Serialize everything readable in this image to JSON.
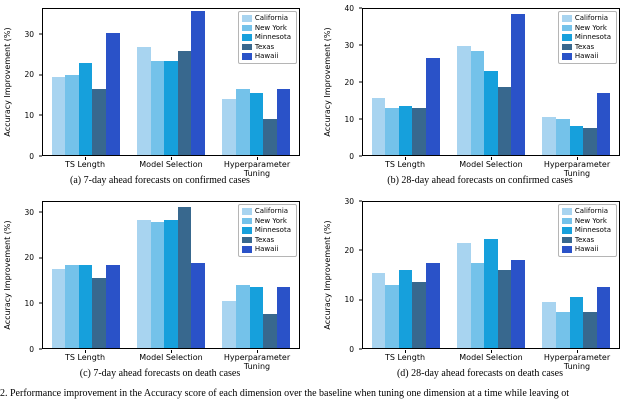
{
  "figure": {
    "bottom_caption": "2.   Performance improvement in the Accuracy score of each dimension over the baseline when tuning one dimension at a time while leaving ot"
  },
  "palette": [
    "#a8d4f0",
    "#74c2ea",
    "#16a0dc",
    "#38688e",
    "#2a52c8"
  ],
  "chart_data": [
    {
      "id": "a",
      "type": "bar",
      "caption": "(a) 7-day ahead forecasts on confirmed cases",
      "ylabel": "Accuracy Improvement (%)",
      "categories": [
        "TS Length",
        "Model Selection",
        "Hyperparameter Tuning"
      ],
      "yticks": [
        0,
        10,
        20,
        30
      ],
      "ylim": [
        0,
        36.5
      ],
      "legend_position": "upper right",
      "series": [
        {
          "name": "California",
          "values": [
            19.5,
            27,
            14
          ]
        },
        {
          "name": "New York",
          "values": [
            20,
            23.5,
            16.5
          ]
        },
        {
          "name": "Minnesota",
          "values": [
            23,
            23.5,
            15.5
          ]
        },
        {
          "name": "Texas",
          "values": [
            16.5,
            26,
            9
          ]
        },
        {
          "name": "Hawaii",
          "values": [
            30.5,
            36,
            16.5
          ]
        }
      ]
    },
    {
      "id": "b",
      "type": "bar",
      "caption": "(b) 28-day ahead forecasts on confirmed cases",
      "ylabel": "Accuracy Improvement (%)",
      "categories": [
        "TS Length",
        "Model Selection",
        "Hyperparameter Tuning"
      ],
      "yticks": [
        0,
        10,
        20,
        30,
        40
      ],
      "ylim": [
        0,
        40
      ],
      "legend_position": "upper right",
      "series": [
        {
          "name": "California",
          "values": [
            15.5,
            30,
            10.5
          ]
        },
        {
          "name": "New York",
          "values": [
            13,
            28.5,
            10
          ]
        },
        {
          "name": "Minnesota",
          "values": [
            13.5,
            23,
            8
          ]
        },
        {
          "name": "Texas",
          "values": [
            13,
            18.5,
            7.5
          ]
        },
        {
          "name": "Hawaii",
          "values": [
            26.5,
            38.5,
            17
          ]
        }
      ]
    },
    {
      "id": "c",
      "type": "bar",
      "caption": "(c) 7-day ahead forecasts on death cases",
      "ylabel": "Accuracy Improvement (%)",
      "categories": [
        "TS Length",
        "Model Selection",
        "Hyperparameter Tuning"
      ],
      "yticks": [
        0,
        10,
        20,
        30
      ],
      "ylim": [
        0,
        32.5
      ],
      "legend_position": "upper right",
      "series": [
        {
          "name": "California",
          "values": [
            17.5,
            28.5,
            10.5
          ]
        },
        {
          "name": "New York",
          "values": [
            18.5,
            28,
            14
          ]
        },
        {
          "name": "Minnesota",
          "values": [
            18.5,
            28.5,
            13.5
          ]
        },
        {
          "name": "Texas",
          "values": [
            15.5,
            31.5,
            7.5
          ]
        },
        {
          "name": "Hawaii",
          "values": [
            18.5,
            19,
            13.5
          ]
        }
      ]
    },
    {
      "id": "d",
      "type": "bar",
      "caption": "(d) 28-day ahead forecasts on death cases",
      "ylabel": "Accuracy Improvement (%)",
      "categories": [
        "TS Length",
        "Model Selection",
        "Hyperparameter Tuning"
      ],
      "yticks": [
        0,
        10,
        20,
        30
      ],
      "ylim": [
        0,
        30
      ],
      "legend_position": "upper right",
      "series": [
        {
          "name": "California",
          "values": [
            15.5,
            21.5,
            9.5
          ]
        },
        {
          "name": "New York",
          "values": [
            13,
            17.5,
            7.5
          ]
        },
        {
          "name": "Minnesota",
          "values": [
            16,
            22.5,
            10.5
          ]
        },
        {
          "name": "Texas",
          "values": [
            13.5,
            16,
            7.5
          ]
        },
        {
          "name": "Hawaii",
          "values": [
            17.5,
            18,
            12.5
          ]
        }
      ]
    }
  ]
}
